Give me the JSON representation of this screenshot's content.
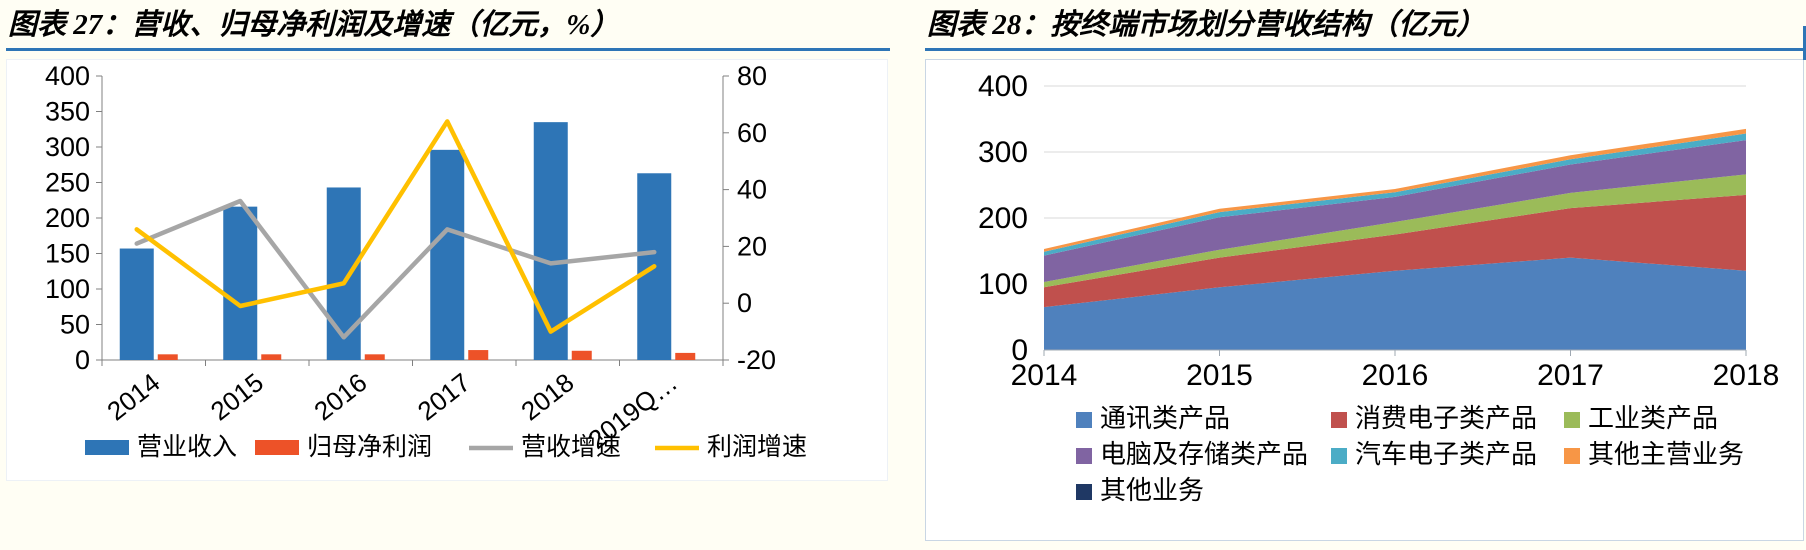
{
  "page": {
    "background": "#FFFEF4"
  },
  "colors": {
    "title_rule": "#2E75B6",
    "right_box_border": "#C9D6E4",
    "gridline": "#D9D9D9",
    "axis": "#808080"
  },
  "chart_data": [
    {
      "id": "chart27",
      "type": "bar",
      "subtype": "combo-bar-line",
      "title": "图表 27：营收、归母净利润及增速（亿元，%）",
      "categories": [
        "2014",
        "2015",
        "2016",
        "2017",
        "2018",
        "2019Q…"
      ],
      "left_axis": {
        "min": 0,
        "max": 400,
        "ticks": [
          0,
          50,
          100,
          150,
          200,
          250,
          300,
          350,
          400
        ]
      },
      "right_axis": {
        "min": -20,
        "max": 80,
        "ticks": [
          -20,
          0,
          20,
          40,
          60,
          80
        ]
      },
      "bar_series": [
        {
          "name": "营业收入",
          "color": "#2E75B6",
          "axis": "left",
          "values": [
            157,
            216,
            243,
            296,
            335,
            263
          ]
        },
        {
          "name": "归母净利润",
          "color": "#ED5228",
          "axis": "left",
          "values": [
            8,
            8,
            8,
            14,
            13,
            10
          ]
        }
      ],
      "line_series": [
        {
          "name": "营收增速",
          "color": "#A6A6A6",
          "axis": "right",
          "values": [
            21,
            36,
            -12,
            26,
            14,
            18
          ]
        },
        {
          "name": "利润增速",
          "color": "#FFC000",
          "axis": "right",
          "values": [
            26,
            -1,
            7,
            64,
            -10,
            13
          ]
        }
      ],
      "legend_position": "bottom",
      "grid": false
    },
    {
      "id": "chart28",
      "type": "area",
      "subtype": "stacked-area",
      "title": "图表 28：按终端市场划分营收结构（亿元）",
      "x": [
        "2014",
        "2015",
        "2016",
        "2017",
        "2018"
      ],
      "y_axis": {
        "min": 0,
        "max": 400,
        "ticks": [
          0,
          100,
          200,
          300,
          400
        ]
      },
      "series": [
        {
          "name": "通讯类产品",
          "color": "#4F81BD",
          "values": [
            65,
            95,
            120,
            140,
            120
          ]
        },
        {
          "name": "消费电子类产品",
          "color": "#C0504D",
          "values": [
            30,
            45,
            55,
            75,
            115
          ]
        },
        {
          "name": "工业类产品",
          "color": "#9BBB59",
          "values": [
            8,
            12,
            19,
            23,
            31
          ]
        },
        {
          "name": "电脑及存储类产品",
          "color": "#8064A2",
          "values": [
            40,
            49,
            38,
            43,
            52
          ]
        },
        {
          "name": "汽车电子类产品",
          "color": "#4BACC6",
          "values": [
            6,
            8,
            7,
            8,
            10
          ]
        },
        {
          "name": "其他主营业务",
          "color": "#F79646",
          "values": [
            4,
            5,
            5,
            6,
            7
          ]
        },
        {
          "name": "其他业务",
          "color": "#1F3864",
          "values": [
            0,
            0,
            0,
            0,
            0
          ]
        }
      ],
      "legend_position": "bottom",
      "grid": true
    }
  ]
}
